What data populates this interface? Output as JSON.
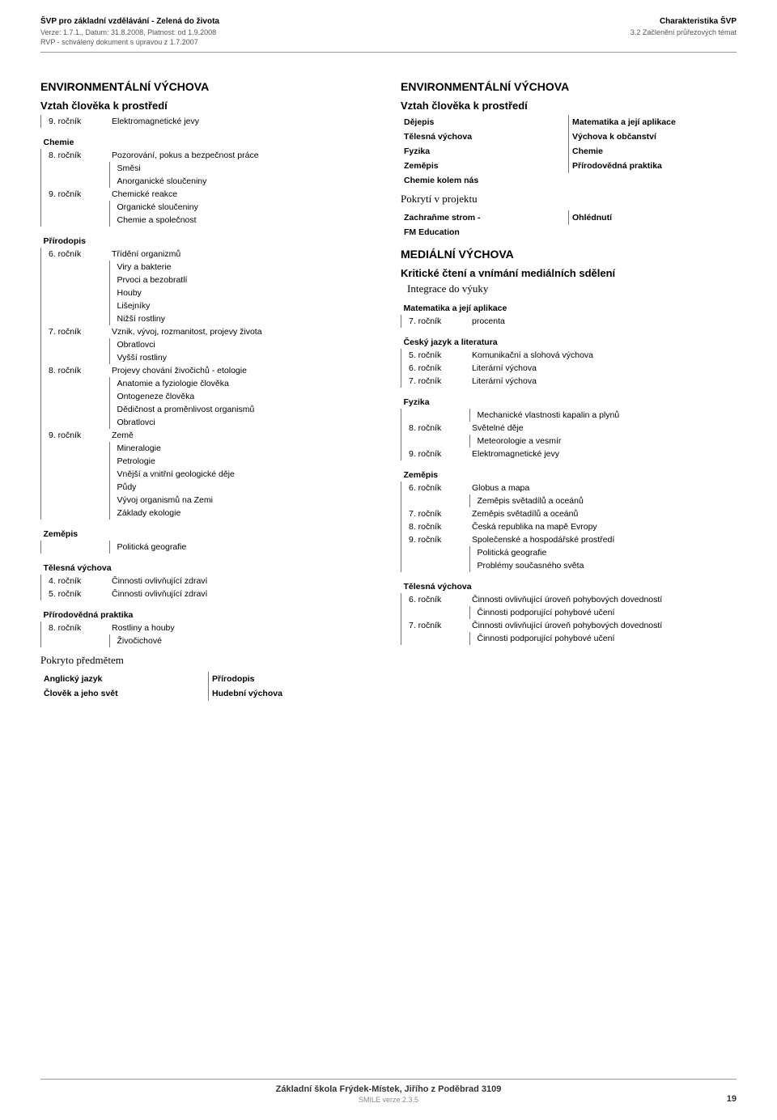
{
  "header": {
    "left": {
      "title": "ŠVP pro základní vzdělávání - Zelená do života",
      "line2": "Verze: 1.7.1., Datum: 31.8.2008, Platnost: od 1.9.2008",
      "line3": "RVP - schválený dokument s úpravou z 1.7.2007"
    },
    "right": {
      "title": "Charakteristika ŠVP",
      "line2": "3.2 Začlenění průřezových témat"
    }
  },
  "left_col": {
    "h1": "ENVIRONMENTÁLNÍ VÝCHOVA",
    "h2": "Vztah člověka k prostředí",
    "blocks": [
      {
        "rows": [
          {
            "label": "9. ročník",
            "text": "Elektromagnetické jevy",
            "depth": 1
          }
        ]
      },
      {
        "group": "Chemie",
        "rows": [
          {
            "label": "8. ročník",
            "text": "Pozorování, pokus a bezpečnost práce",
            "depth": 1
          },
          {
            "label": "",
            "text": "Směsi",
            "depth": 2
          },
          {
            "label": "",
            "text": "Anorganické sloučeniny",
            "depth": 2
          },
          {
            "label": "9. ročník",
            "text": "Chemické reakce",
            "depth": 1
          },
          {
            "label": "",
            "text": "Organické sloučeniny",
            "depth": 2
          },
          {
            "label": "",
            "text": "Chemie a společnost",
            "depth": 2
          }
        ]
      },
      {
        "group": "Přírodopis",
        "rows": [
          {
            "label": "6. ročník",
            "text": "Třídění organizmů",
            "depth": 1
          },
          {
            "label": "",
            "text": "Viry a bakterie",
            "depth": 2
          },
          {
            "label": "",
            "text": "Prvoci a bezobratlí",
            "depth": 2
          },
          {
            "label": "",
            "text": "Houby",
            "depth": 2
          },
          {
            "label": "",
            "text": "Lišejníky",
            "depth": 2
          },
          {
            "label": "",
            "text": "Nižší rostliny",
            "depth": 2
          },
          {
            "label": "7. ročník",
            "text": "Vznik, vývoj, rozmanitost, projevy života",
            "depth": 1
          },
          {
            "label": "",
            "text": "Obratlovci",
            "depth": 2
          },
          {
            "label": "",
            "text": "Vyšší rostliny",
            "depth": 2
          },
          {
            "label": "8. ročník",
            "text": "Projevy chování živočichů - etologie",
            "depth": 1
          },
          {
            "label": "",
            "text": "Anatomie a fyziologie člověka",
            "depth": 2
          },
          {
            "label": "",
            "text": "Ontogeneze člověka",
            "depth": 2
          },
          {
            "label": "",
            "text": "Dědičnost a proměnlivost organismů",
            "depth": 2
          },
          {
            "label": "",
            "text": "Obratlovci",
            "depth": 2
          },
          {
            "label": "9. ročník",
            "text": "Země",
            "depth": 1
          },
          {
            "label": "",
            "text": "Mineralogie",
            "depth": 2
          },
          {
            "label": "",
            "text": "Petrologie",
            "depth": 2
          },
          {
            "label": "",
            "text": "Vnější a vnitřní geologické děje",
            "depth": 2
          },
          {
            "label": "",
            "text": "Půdy",
            "depth": 2
          },
          {
            "label": "",
            "text": "Vývoj organismů na Zemi",
            "depth": 2
          },
          {
            "label": "",
            "text": "Základy ekologie",
            "depth": 2
          }
        ]
      },
      {
        "group": "Zeměpis",
        "rows": [
          {
            "label": "",
            "text": "Politická geografie",
            "depth": 2
          }
        ]
      },
      {
        "group": "Tělesná výchova",
        "rows": [
          {
            "label": "4. ročník",
            "text": "Činnosti ovlivňující zdraví",
            "depth": 1
          },
          {
            "label": "5. ročník",
            "text": "Činnosti ovlivňující zdraví",
            "depth": 1
          }
        ]
      },
      {
        "group": "Přírodovědná praktika",
        "rows": [
          {
            "label": "8. ročník",
            "text": "Rostliny a houby",
            "depth": 1
          },
          {
            "label": "",
            "text": "Živočichové",
            "depth": 2
          }
        ]
      }
    ],
    "pokryto": "Pokryto předmětem",
    "pokryto_rows": [
      [
        "Anglický jazyk",
        "Přírodopis"
      ],
      [
        "Člověk a jeho svět",
        "Hudební výchova"
      ]
    ]
  },
  "right_col": {
    "h1": "ENVIRONMENTÁLNÍ VÝCHOVA",
    "h2": "Vztah člověka k prostředí",
    "pairs1": [
      [
        "Dějepis",
        "Matematika a její aplikace"
      ],
      [
        "Tělesná výchova",
        "Výchova k občanství"
      ],
      [
        "Fyzika",
        "Chemie"
      ],
      [
        "Zeměpis",
        "Přírodovědná praktika"
      ],
      [
        "Chemie kolem nás",
        ""
      ]
    ],
    "pokryti": "Pokrytí v projektu",
    "pairs2": [
      [
        "Zachraňme strom -",
        "Ohlédnutí"
      ],
      [
        "FM Education",
        ""
      ]
    ],
    "med_h1": "MEDIÁLNÍ VÝCHOVA",
    "med_h2": "Kritické čtení a vnímání mediálních sdělení",
    "integ": "Integrace do výuky",
    "med_blocks": [
      {
        "group": "Matematika a její aplikace",
        "rows": [
          {
            "label": "7. ročník",
            "text": "procenta",
            "depth": 1
          }
        ]
      },
      {
        "group": "Český jazyk a literatura",
        "rows": [
          {
            "label": "5. ročník",
            "text": "Komunikační a slohová výchova",
            "depth": 1
          },
          {
            "label": "6. ročník",
            "text": "Literární výchova",
            "depth": 1
          },
          {
            "label": "7. ročník",
            "text": "Literární výchova",
            "depth": 1
          }
        ]
      },
      {
        "group": "Fyzika",
        "rows": [
          {
            "label": "",
            "text": "Mechanické vlastnosti kapalin a plynů",
            "depth": 2
          },
          {
            "label": "8. ročník",
            "text": "Světelné děje",
            "depth": 1
          },
          {
            "label": "",
            "text": "Meteorologie a vesmír",
            "depth": 2
          },
          {
            "label": "9. ročník",
            "text": "Elektromagnetické jevy",
            "depth": 1
          }
        ]
      },
      {
        "group": "Zeměpis",
        "rows": [
          {
            "label": "6. ročník",
            "text": "Globus a mapa",
            "depth": 1
          },
          {
            "label": "",
            "text": "Zeměpis světadílů a oceánů",
            "depth": 2
          },
          {
            "label": "7. ročník",
            "text": "Zeměpis světadílů a oceánů",
            "depth": 1
          },
          {
            "label": "8. ročník",
            "text": "Česká republika na mapě Evropy",
            "depth": 1
          },
          {
            "label": "9. ročník",
            "text": "Společenské a hospodářské prostředí",
            "depth": 1
          },
          {
            "label": "",
            "text": "Politická geografie",
            "depth": 2
          },
          {
            "label": "",
            "text": "Problémy současného světa",
            "depth": 2
          }
        ]
      },
      {
        "group": "Tělesná výchova",
        "rows": [
          {
            "label": "6. ročník",
            "text": "Činnosti ovlivňující úroveň pohybových dovedností",
            "depth": 1
          },
          {
            "label": "",
            "text": "Činnosti podporující pohybové učení",
            "depth": 2
          },
          {
            "label": "7. ročník",
            "text": "Činnosti ovlivňující úroveň pohybových dovedností",
            "depth": 1
          },
          {
            "label": "",
            "text": "Činnosti podporující  pohybové učení",
            "depth": 2
          }
        ]
      }
    ]
  },
  "footer": {
    "school": "Základní škola Frýdek-Místek, Jiřího z Poděbrad 3109",
    "smile": "SMILE verze 2.3.5",
    "page": "19"
  }
}
